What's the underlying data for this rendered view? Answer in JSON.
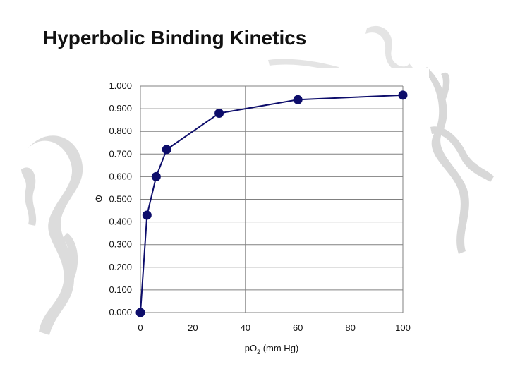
{
  "slide": {
    "title": "Hyperbolic Binding Kinetics"
  },
  "chart_data": {
    "type": "line",
    "x": [
      0,
      2.5,
      6,
      10,
      30,
      60,
      100
    ],
    "y": [
      0.0,
      0.43,
      0.6,
      0.72,
      0.88,
      0.94,
      0.96
    ],
    "xlabel": "p",
    "xlabel_sub": "2",
    "xlabel_prefix": "O",
    "xlabel_suffix": " (mm Hg)",
    "ylabel": "Θ",
    "xlim": [
      0,
      100
    ],
    "ylim": [
      0,
      1
    ],
    "x_ticks": [
      "0",
      "20",
      "40",
      "60",
      "80",
      "100"
    ],
    "y_ticks": [
      "0.000",
      "0.100",
      "0.200",
      "0.300",
      "0.400",
      "0.500",
      "0.600",
      "0.700",
      "0.800",
      "0.900",
      "1.000"
    ],
    "x_tick_values": [
      0,
      20,
      40,
      60,
      80,
      100
    ],
    "y_tick_values": [
      0,
      0.1,
      0.2,
      0.3,
      0.4,
      0.5,
      0.6,
      0.7,
      0.8,
      0.9,
      1.0
    ],
    "grid": "major",
    "series_color": "#0d0d6b",
    "grid_color": "#808080"
  }
}
